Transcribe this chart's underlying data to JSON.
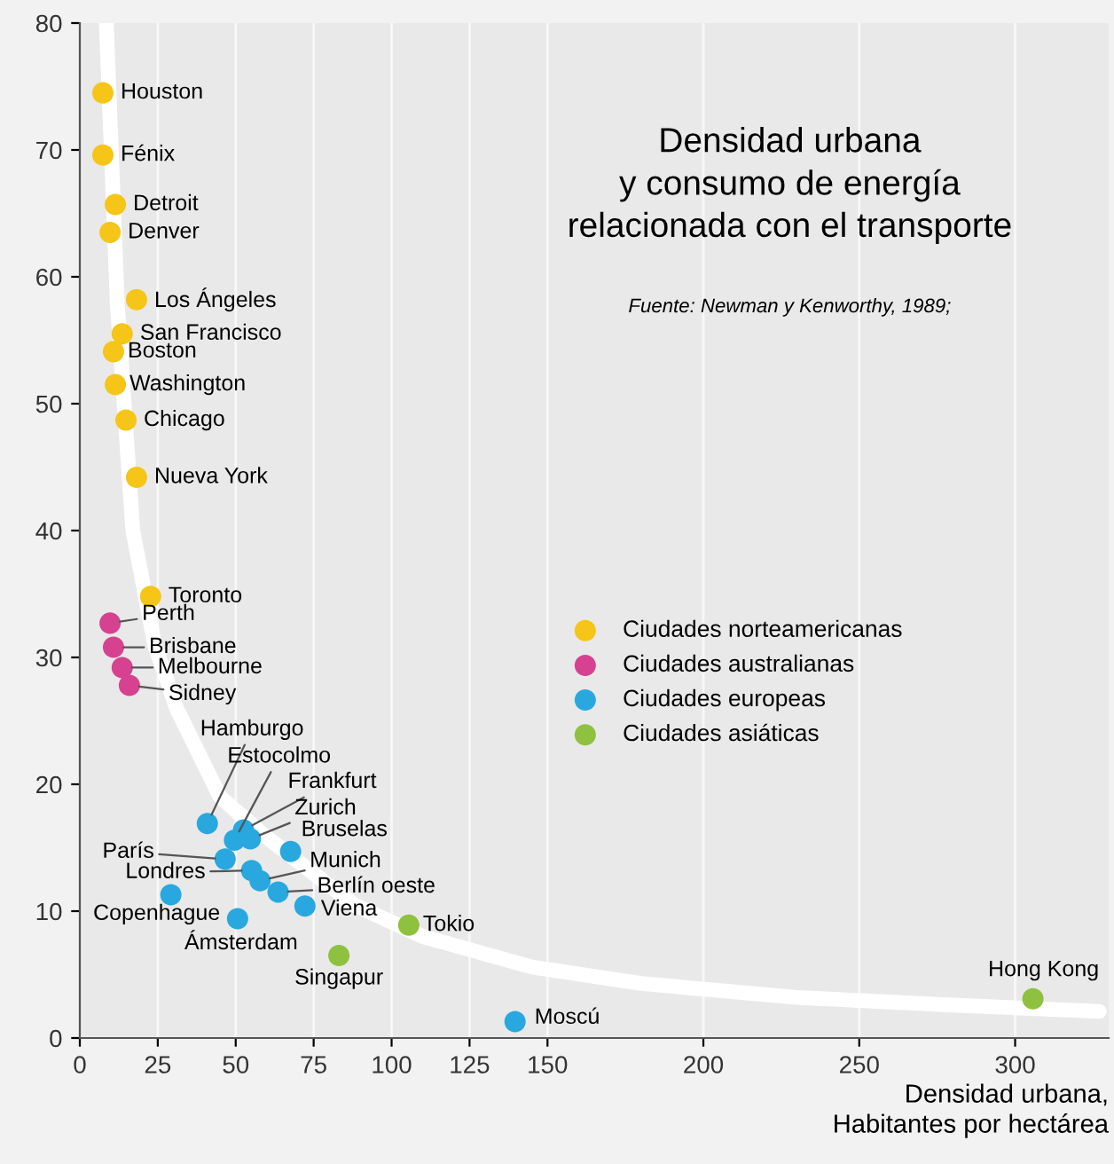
{
  "chart_data": {
    "type": "scatter",
    "title": "Densidad urbana\ny consumo de energía\nrelacionada con el transporte",
    "xlabel": "Densidad urbana,\nHabitantes por hectárea",
    "xlim": [
      0,
      330
    ],
    "xticks": [
      0,
      25,
      50,
      75,
      100,
      125,
      150,
      200,
      250,
      300
    ],
    "ylim": [
      0,
      80
    ],
    "yticks": [
      0,
      10,
      20,
      30,
      40,
      50,
      60,
      70,
      80
    ],
    "grid": "x",
    "legend": "right",
    "marker": "circle",
    "series": [
      {
        "name": "Ciudades norteamericanas",
        "color": "#f5c518",
        "x": [
          7.4,
          7.4,
          11.4,
          9.7,
          18.2,
          13.6,
          10.8,
          11.4,
          14.8,
          18.2,
          22.7
        ],
        "values": [
          74.5,
          69.6,
          65.7,
          63.5,
          58.2,
          55.5,
          54.1,
          51.5,
          48.7,
          44.2,
          34.8
        ]
      },
      {
        "name": "Ciudades australianas",
        "color": "#d6428f",
        "x": [
          9.7,
          10.8,
          13.6,
          15.9
        ],
        "values": [
          32.7,
          30.8,
          29.2,
          27.8
        ]
      },
      {
        "name": "Ciudades europeas",
        "color": "#29a8e0",
        "x": [
          40.9,
          49.6,
          52.5,
          54.7,
          46.6,
          67.6,
          55.1,
          57.8,
          63.6,
          72.2,
          29.2,
          50.6,
          139.6
        ],
        "values": [
          16.9,
          15.6,
          16.4,
          15.7,
          14.1,
          14.7,
          13.2,
          12.4,
          11.5,
          10.4,
          11.3,
          9.4,
          1.3
        ]
      },
      {
        "name": "Ciudades asiáticas",
        "color": "#8dc13f",
        "x": [
          105.5,
          83.1,
          305.7
        ],
        "values": [
          8.9,
          6.5,
          3.1
        ]
      },
      {
        "type": "line",
        "color": "#ffffff",
        "marker": "none",
        "x": [
          8.5,
          12,
          17,
          24,
          31,
          45,
          59,
          88,
          110,
          145,
          180,
          230,
          280,
          327
        ],
        "values": [
          80,
          58,
          40,
          31,
          26,
          19,
          16,
          10.5,
          8,
          5.6,
          4.3,
          3.2,
          2.6,
          2.1
        ]
      }
    ],
    "annotations": [
      "Fuente: Newman y Kenworthy, 1989;",
      {
        "text": "Houston",
        "x": 7.4,
        "y": 74.5
      },
      {
        "text": "Fénix",
        "x": 7.4,
        "y": 69.6
      },
      {
        "text": "Detroit",
        "x": 11.4,
        "y": 65.7
      },
      {
        "text": "Denver",
        "x": 9.7,
        "y": 63.5
      },
      {
        "text": "Los Ángeles",
        "x": 18.2,
        "y": 58.2
      },
      {
        "text": "San Francisco",
        "x": 13.6,
        "y": 55.5
      },
      {
        "text": "Boston",
        "x": 10.8,
        "y": 54.1
      },
      {
        "text": "Washington",
        "x": 11.4,
        "y": 51.5
      },
      {
        "text": "Chicago",
        "x": 14.8,
        "y": 48.7
      },
      {
        "text": "Nueva York",
        "x": 18.2,
        "y": 44.2
      },
      {
        "text": "Toronto",
        "x": 22.7,
        "y": 34.8
      },
      {
        "text": "Perth",
        "x": 9.7,
        "y": 32.7
      },
      {
        "text": "Brisbane",
        "x": 10.8,
        "y": 30.8
      },
      {
        "text": "Melbourne",
        "x": 13.6,
        "y": 29.2
      },
      {
        "text": "Sidney",
        "x": 15.9,
        "y": 27.8
      },
      {
        "text": "Hamburgo",
        "x": 40.9,
        "y": 16.9
      },
      {
        "text": "Estocolmo",
        "x": 49.6,
        "y": 15.6
      },
      {
        "text": "Frankfurt",
        "x": 52.5,
        "y": 16.4
      },
      {
        "text": "Zurich",
        "x": 54.7,
        "y": 15.7
      },
      {
        "text": "París",
        "x": 46.6,
        "y": 14.1
      },
      {
        "text": "Bruselas",
        "x": 67.6,
        "y": 14.7
      },
      {
        "text": "Londres",
        "x": 55.1,
        "y": 13.2
      },
      {
        "text": "Munich",
        "x": 57.8,
        "y": 12.4
      },
      {
        "text": "Berlín oeste",
        "x": 63.6,
        "y": 11.5
      },
      {
        "text": "Viena",
        "x": 72.2,
        "y": 10.4
      },
      {
        "text": "Copenhague",
        "x": 29.2,
        "y": 11.3
      },
      {
        "text": "Ámsterdam",
        "x": 50.6,
        "y": 9.4
      },
      {
        "text": "Tokio",
        "x": 105.5,
        "y": 8.9
      },
      {
        "text": "Singapur",
        "x": 83.1,
        "y": 6.5
      },
      {
        "text": "Moscú",
        "x": 139.6,
        "y": 1.3
      },
      {
        "text": "Hong Kong",
        "x": 305.7,
        "y": 3.1
      }
    ]
  }
}
